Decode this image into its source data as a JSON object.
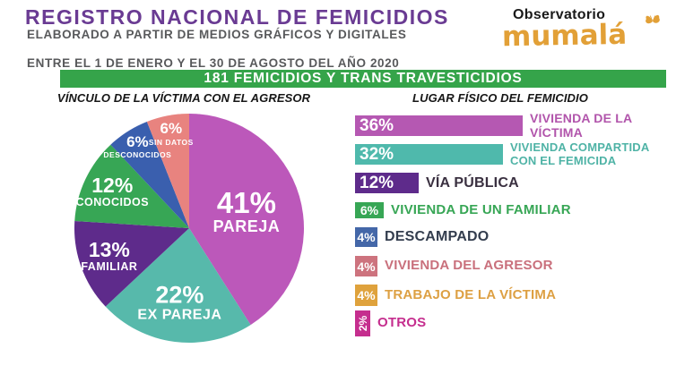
{
  "header": {
    "title": "REGISTRO NACIONAL DE FEMICIDIOS",
    "subtitle_line1": "ELABORADO A PARTIR DE MEDIOS GRÁFICOS Y DIGITALES",
    "subtitle_line2": "ENTRE EL 1 DE ENERO Y EL 30 DE AGOSTO DEL AÑO 2020",
    "title_color": "#6a3b93",
    "subtitle_color": "#58595b"
  },
  "logo": {
    "line1": "Observatorio",
    "wordmark": "mumalá",
    "wordmark_color": "#e2a037",
    "butterfly_icon": "butterfly-icon"
  },
  "banner": {
    "text": "181 FEMICIDIOS Y TRANS TRAVESTICIDIOS",
    "bg_color": "#35a44a",
    "text_color": "#ffffff"
  },
  "sections": {
    "pie_title": "VÍNCULO DE LA VÍCTIMA CON EL AGRESOR",
    "bar_title": "LUGAR FÍSICO DEL FEMICIDIO"
  },
  "chart_data": [
    {
      "type": "pie",
      "title": "VÍNCULO DE LA VÍCTIMA CON EL AGRESOR",
      "start_angle_deg": 0,
      "direction": "clockwise",
      "unit": "%",
      "segments": [
        {
          "label": "PAREJA",
          "value": 41,
          "color": "#bc58ba"
        },
        {
          "label": "EX PAREJA",
          "value": 22,
          "color": "#57b9ab"
        },
        {
          "label": "FAMILIAR",
          "value": 13,
          "color": "#5e2b8b"
        },
        {
          "label": "CONOCIDOS",
          "value": 12,
          "color": "#37a655"
        },
        {
          "label": "DESCONOCIDOS",
          "value": 6,
          "color": "#3a5fae"
        },
        {
          "label": "SIN DATOS",
          "value": 6,
          "color": "#e8837f"
        }
      ]
    },
    {
      "type": "bar",
      "title": "LUGAR FÍSICO DEL FEMICIDIO",
      "orientation": "horizontal",
      "unit": "%",
      "bars": [
        {
          "label": "VIVIENDA DE LA VÍCTIMA",
          "value": 36,
          "color": "#b558b2",
          "label_color": "#b154ab"
        },
        {
          "label": "VIVIENDA COMPARTIDA\nCON EL FEMICIDA",
          "value": 32,
          "color": "#4fb9ac",
          "label_color": "#4fb3a6"
        },
        {
          "label": "VÍA PÚBLICA",
          "value": 12,
          "color": "#5e2b8b",
          "label_color": "#3a3040"
        },
        {
          "label": "VIVIENDA DE UN FAMILIAR",
          "value": 6,
          "color": "#37a655",
          "label_color": "#37a655"
        },
        {
          "label": "DESCAMPADO",
          "value": 4,
          "color": "#4467a8",
          "label_color": "#333d4e"
        },
        {
          "label": "VIVIENDA DEL AGRESOR",
          "value": 4,
          "color": "#cd737e",
          "label_color": "#c9707c"
        },
        {
          "label": "TRABAJO DE LA VÍCTIMA",
          "value": 4,
          "color": "#dfa23c",
          "label_color": "#dda043"
        },
        {
          "label": "OTROS",
          "value": 2,
          "color": "#c52e8e",
          "label_color": "#c52e8e"
        }
      ]
    }
  ]
}
